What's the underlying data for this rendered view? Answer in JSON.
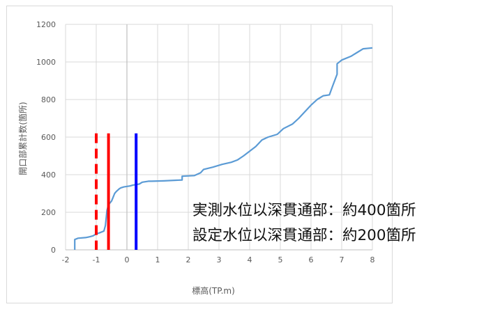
{
  "chart_data": {
    "type": "line",
    "title": "",
    "xlabel": "標高(TP.m)",
    "ylabel": "開口部累計数(箇所)",
    "xlim": [
      -2,
      8
    ],
    "ylim": [
      0,
      1200
    ],
    "x_ticks": [
      -2,
      -1,
      0,
      1,
      2,
      3,
      4,
      5,
      6,
      7,
      8
    ],
    "y_ticks": [
      0,
      200,
      400,
      600,
      800,
      1000,
      1200
    ],
    "grid": true,
    "series": [
      {
        "color": "#5b9bd5",
        "x": [
          -1.7,
          -1.7,
          -1.62,
          -1.6,
          -1.35,
          -1.2,
          -1.1,
          -1.05,
          -1.0,
          -0.9,
          -0.75,
          -0.7,
          -0.65,
          -0.6,
          -0.5,
          -0.45,
          -0.4,
          -0.35,
          -0.25,
          -0.2,
          -0.1,
          0.1,
          0.2,
          0.4,
          0.5,
          0.7,
          0.8,
          1.2,
          1.8,
          1.8,
          2.2,
          2.4,
          2.5,
          2.8,
          3.1,
          3.4,
          3.6,
          3.8,
          4.0,
          4.2,
          4.4,
          4.6,
          4.9,
          5.1,
          5.4,
          5.6,
          5.8,
          6.0,
          6.2,
          6.4,
          6.6,
          6.7,
          6.85,
          6.85,
          7.0,
          7.3,
          7.5,
          7.7,
          8.0
        ],
        "y": [
          0,
          55,
          60,
          62,
          65,
          70,
          75,
          80,
          85,
          90,
          100,
          130,
          210,
          240,
          260,
          280,
          300,
          310,
          325,
          330,
          335,
          340,
          345,
          350,
          360,
          365,
          365,
          367,
          372,
          392,
          395,
          410,
          428,
          440,
          455,
          466,
          478,
          500,
          525,
          550,
          585,
          600,
          615,
          645,
          670,
          700,
          735,
          770,
          800,
          820,
          825,
          870,
          935,
          990,
          1010,
          1030,
          1050,
          1070,
          1075
        ]
      }
    ],
    "vertical_markers": [
      {
        "x": -1.0,
        "color": "#ff0000",
        "style": "dashed",
        "top": 620
      },
      {
        "x": -0.6,
        "color": "#ff0000",
        "style": "solid",
        "top": 620
      },
      {
        "x": 0.3,
        "color": "#0000ff",
        "style": "solid",
        "top": 620
      }
    ]
  },
  "annotations": {
    "line1": "実測水位以深貫通部：約400箇所",
    "line2": "設定水位以深貫通部：約200箇所"
  }
}
